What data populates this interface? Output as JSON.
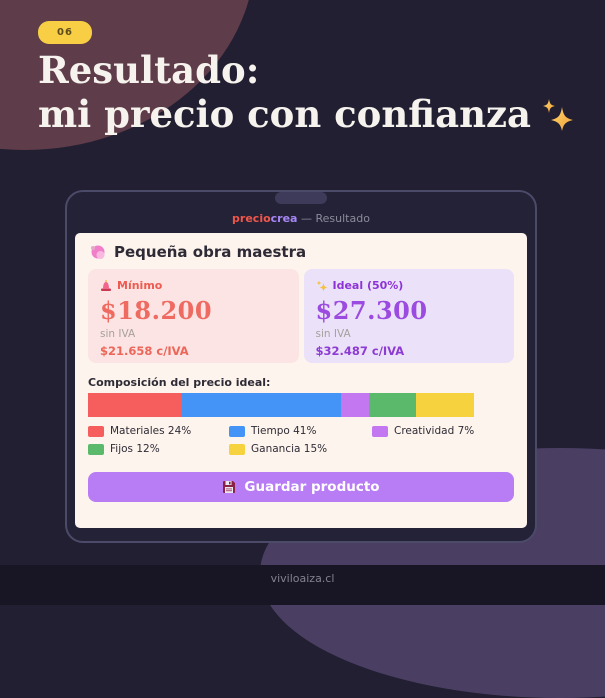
{
  "page": {
    "badge": "06",
    "title_line1": "Resultado:",
    "title_line2": "mi precio con confianza",
    "footer": "viviloaiza.cl"
  },
  "window": {
    "brand_precio": "precio",
    "brand_crea": "crea",
    "header_suffix": " — Resultado"
  },
  "card": {
    "title": "Pequeña obra maestra",
    "min_box": {
      "label": "Mínimo",
      "price": "$18.200",
      "tax_note": "sin IVA",
      "with_tax": "$21.658 c/IVA"
    },
    "ideal_box": {
      "label": "Ideal (50%)",
      "price": "$27.300",
      "tax_note": "sin IVA",
      "with_tax": "$32.487 c/IVA"
    },
    "composition_label": "Composición del precio ideal:",
    "save_button": "Guardar producto"
  },
  "icons": {
    "title_end": "sparkles-icon",
    "card_title": "flower-icon",
    "min_label": "siren-icon",
    "ideal_label": "sparkle-icon",
    "save_button": "floppy-disk-icon"
  },
  "chart_data": {
    "type": "bar",
    "title": "Composición del precio ideal",
    "orientation": "horizontal-stacked",
    "unit": "%",
    "segments": [
      {
        "label": "Materiales",
        "value": 24,
        "color": "#f65e5e"
      },
      {
        "label": "Tiempo",
        "value": 41,
        "color": "#4394f6"
      },
      {
        "label": "Creatividad",
        "value": 7,
        "color": "#c377f1"
      },
      {
        "label": "Fijos",
        "value": 12,
        "color": "#5bb96b"
      },
      {
        "label": "Ganancia",
        "value": 15,
        "color": "#f6d23e"
      }
    ],
    "legend_position": "below"
  },
  "colors": {
    "background": "#211f31",
    "maroon_blob": "#5e3c49",
    "purple_blob": "#4a3f63",
    "footer_strip": "#181624",
    "badge": "#f8cf44",
    "window_bg": "#242236",
    "window_border": "#4c4a69",
    "card_bg": "#fdf4ed",
    "min_box_bg": "#fbe4e3",
    "min_accent": "#ee5a50",
    "ideal_box_bg": "#ebe2f9",
    "ideal_accent": "#8d33d6",
    "button": "#b87df4"
  }
}
